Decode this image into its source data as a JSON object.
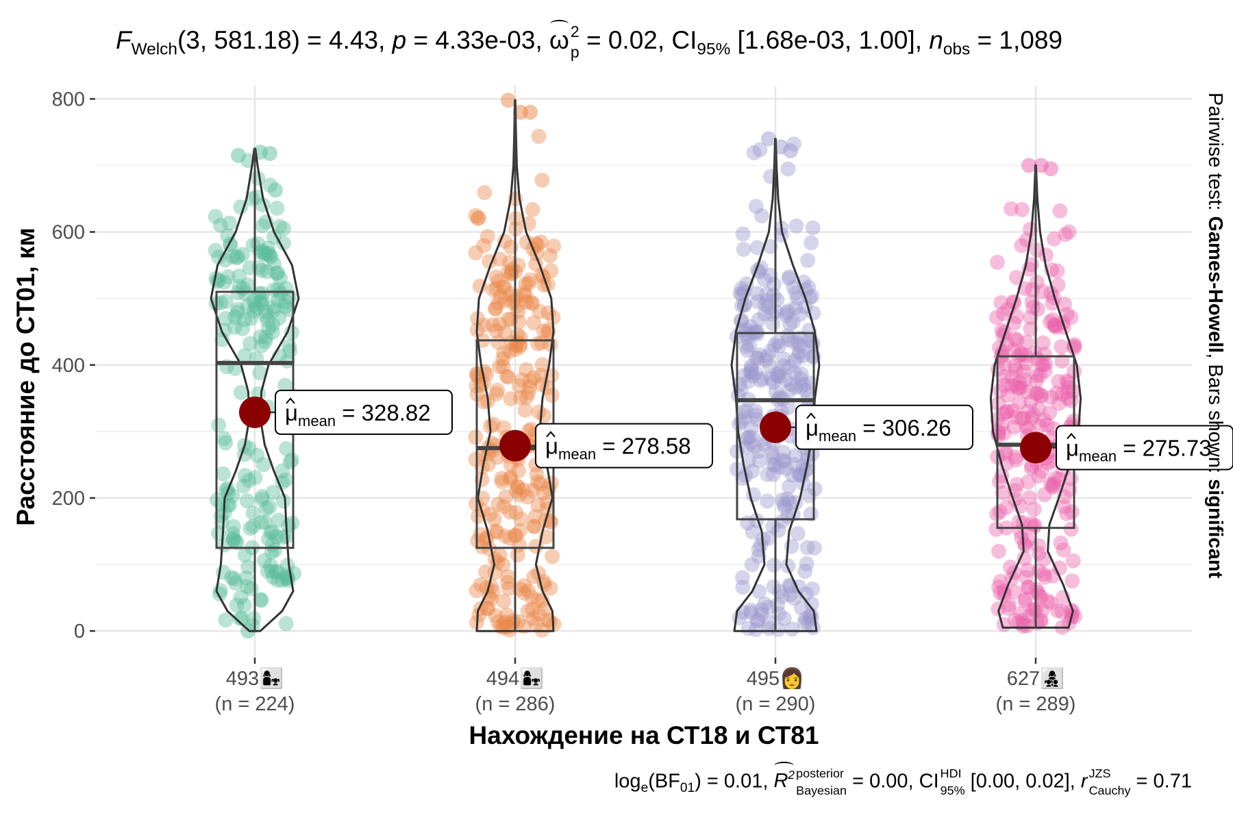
{
  "chart_data": {
    "type": "violin-box-scatter",
    "title": {
      "stat": "F",
      "stat_sub": "Welch",
      "df": "(3, 581.18)",
      "stat_value": " = 4.43, ",
      "p_sym": "p",
      "p_value": " = 4.33e-03, ",
      "es_sym": "ω",
      "es_sup": "2",
      "es_sub": "p",
      "es_value": " = 0.02, ",
      "ci_sym": "CI",
      "ci_sub": "95%",
      "ci_value": " [1.68e-03, 1.00], ",
      "n_sym": "n",
      "n_sub": "obs",
      "n_value": " = 1,089"
    },
    "caption": {
      "bf_pre": "log",
      "bf_e": "e",
      "bf_mid": "(BF",
      "bf_sub": "01",
      "bf_value": ") = 0.01, ",
      "r2_sym": "R",
      "r2_sup": "2",
      "r2_sup2": "posterior",
      "r2_sub": "Bayesian",
      "r2_value": " = 0.00, ",
      "ci_sym": "CI",
      "ci_sup": "HDI",
      "ci_sub": "95%",
      "ci_value": " [0.00, 0.02], ",
      "r_sym": "r",
      "r_sup": "JZS",
      "r_sub": "Cauchy",
      "r_value": " = 0.71"
    },
    "xlabel": "Нахождение на СТ18 и СТ81",
    "ylabel": "Расстояние до СТ01, км",
    "right_label": {
      "pre": "Pairwise test: ",
      "test": "Games-Howell",
      "mid": ", Bars shown: ",
      "shown": "significant"
    },
    "ylim": [
      -40,
      820
    ],
    "yticks": [
      0,
      200,
      400,
      600,
      800
    ],
    "grid": true,
    "mean_label_prefix": "μ",
    "mean_label_sub": "mean",
    "groups": [
      {
        "label": "493",
        "icon": "👩‍👧",
        "n_label": "(n = 224)",
        "n": 224,
        "color": "#5BBD9C",
        "mean": 328.82,
        "mean_label": "328.82",
        "box": {
          "min": 0,
          "q1": 125,
          "median": 403,
          "q3": 510,
          "max": 725
        },
        "density": [
          [
            0,
            0.1
          ],
          [
            30,
            0.5
          ],
          [
            60,
            0.7
          ],
          [
            100,
            0.62
          ],
          [
            150,
            0.58
          ],
          [
            200,
            0.55
          ],
          [
            240,
            0.35
          ],
          [
            280,
            0.18
          ],
          [
            320,
            0.1
          ],
          [
            360,
            0.12
          ],
          [
            400,
            0.25
          ],
          [
            450,
            0.6
          ],
          [
            500,
            0.8
          ],
          [
            550,
            0.68
          ],
          [
            600,
            0.35
          ],
          [
            650,
            0.15
          ],
          [
            700,
            0.05
          ],
          [
            725,
            0.01
          ]
        ],
        "outliers": [
          0,
          720,
          718,
          715,
          663
        ]
      },
      {
        "label": "494",
        "icon": "👩‍👧",
        "n_label": "(n = 286)",
        "n": 286,
        "color": "#E9884A",
        "mean": 278.58,
        "mean_label": "278.58",
        "box": {
          "min": 0,
          "q1": 125,
          "median": 275,
          "q3": 437,
          "max": 798
        },
        "density": [
          [
            0,
            0.7
          ],
          [
            30,
            0.68
          ],
          [
            60,
            0.5
          ],
          [
            100,
            0.38
          ],
          [
            150,
            0.5
          ],
          [
            200,
            0.68
          ],
          [
            250,
            0.58
          ],
          [
            300,
            0.45
          ],
          [
            350,
            0.5
          ],
          [
            400,
            0.62
          ],
          [
            450,
            0.7
          ],
          [
            500,
            0.66
          ],
          [
            550,
            0.45
          ],
          [
            600,
            0.2
          ],
          [
            650,
            0.08
          ],
          [
            700,
            0.03
          ],
          [
            750,
            0.015
          ],
          [
            798,
            0.005
          ]
        ],
        "outliers": [
          798,
          780,
          780
        ]
      },
      {
        "label": "495",
        "icon": "👩",
        "n_label": "(n = 290)",
        "n": 290,
        "color": "#9E99CE",
        "mean": 306.26,
        "mean_label": "306.26",
        "box": {
          "min": 0,
          "q1": 168,
          "median": 347,
          "q3": 448,
          "max": 740
        },
        "density": [
          [
            0,
            0.75
          ],
          [
            30,
            0.7
          ],
          [
            60,
            0.42
          ],
          [
            100,
            0.2
          ],
          [
            150,
            0.25
          ],
          [
            200,
            0.45
          ],
          [
            250,
            0.58
          ],
          [
            300,
            0.68
          ],
          [
            350,
            0.72
          ],
          [
            400,
            0.8
          ],
          [
            450,
            0.72
          ],
          [
            500,
            0.55
          ],
          [
            550,
            0.32
          ],
          [
            600,
            0.12
          ],
          [
            650,
            0.05
          ],
          [
            700,
            0.02
          ],
          [
            740,
            0.005
          ]
        ],
        "outliers": [
          740,
          728,
          722
        ]
      },
      {
        "label": "627",
        "icon": "👩‍👧‍👦",
        "n_label": "(n = 289)",
        "n": 289,
        "color": "#EC63AC",
        "mean": 275.73,
        "mean_label": "275.73",
        "box": {
          "min": 5,
          "q1": 155,
          "median": 280,
          "q3": 413,
          "max": 700
        },
        "density": [
          [
            5,
            0.6
          ],
          [
            30,
            0.68
          ],
          [
            70,
            0.5
          ],
          [
            120,
            0.22
          ],
          [
            160,
            0.25
          ],
          [
            200,
            0.42
          ],
          [
            250,
            0.62
          ],
          [
            300,
            0.78
          ],
          [
            350,
            0.82
          ],
          [
            400,
            0.75
          ],
          [
            450,
            0.55
          ],
          [
            500,
            0.35
          ],
          [
            550,
            0.18
          ],
          [
            600,
            0.08
          ],
          [
            650,
            0.03
          ],
          [
            700,
            0.005
          ]
        ],
        "outliers": [
          700,
          700,
          695
        ]
      }
    ]
  }
}
